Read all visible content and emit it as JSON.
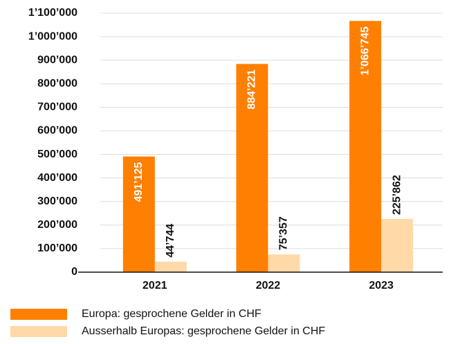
{
  "chart_data": {
    "type": "bar",
    "categories": [
      "2021",
      "2022",
      "2023"
    ],
    "series": [
      {
        "name": "Europa: gesprochene Gelder in CHF",
        "color": "#ff7f00",
        "values": [
          491125,
          884221,
          1066745
        ],
        "value_labels": [
          "491’125",
          "884’221",
          "1’066’745"
        ]
      },
      {
        "name": "Ausserhalb Europas: gesprochene Gelder in CHF",
        "color": "#ffd9a8",
        "values": [
          44744,
          75357,
          225862
        ],
        "value_labels": [
          "44’744",
          "75’357",
          "225’862"
        ]
      }
    ],
    "ylim": [
      0,
      1100000
    ],
    "yticks": [
      0,
      {
        "value": 100000,
        "label": "100’000"
      },
      {
        "value": 200000,
        "label": "200’000"
      },
      {
        "value": 300000,
        "label": "300’000"
      },
      {
        "value": 400000,
        "label": "400’000"
      },
      {
        "value": 500000,
        "label": "500’000"
      },
      {
        "value": 600000,
        "label": "600’000"
      },
      {
        "value": 700000,
        "label": "700’000"
      },
      {
        "value": 800000,
        "label": "800’000"
      },
      {
        "value": 900000,
        "label": "900’000"
      },
      {
        "value": 1000000,
        "label": "1’000’000"
      },
      {
        "value": 1100000,
        "label": "1’100’000"
      }
    ],
    "grid": true
  }
}
